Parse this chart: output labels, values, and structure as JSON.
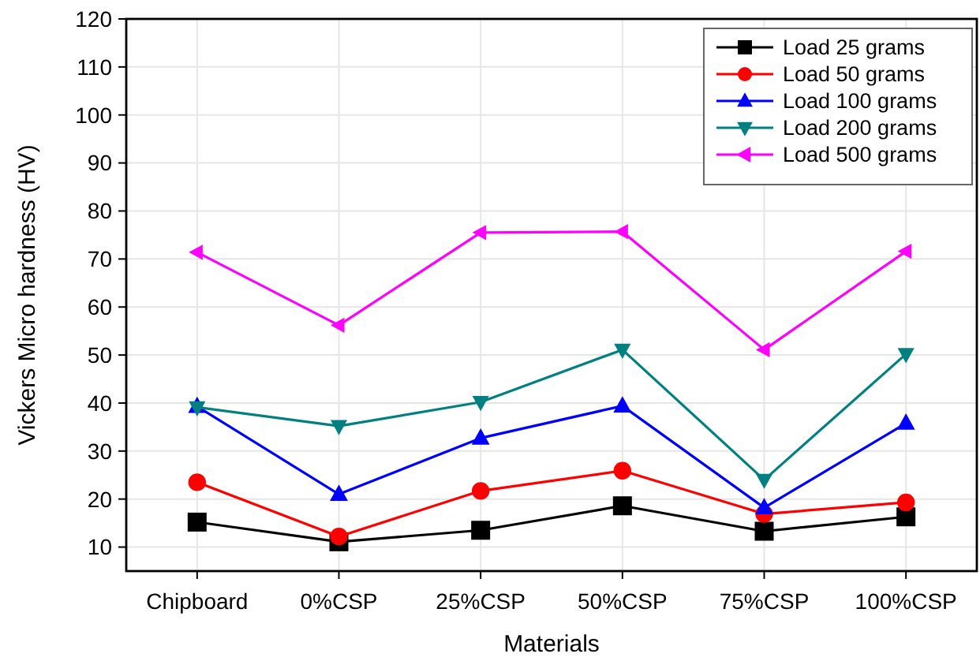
{
  "chart_data": {
    "type": "line",
    "xlabel": "Materials",
    "ylabel": "Vickers Micro hardness (HV)",
    "categories": [
      "Chipboard",
      "0%CSP",
      "25%CSP",
      "50%CSP",
      "75%CSP",
      "100%CSP"
    ],
    "series": [
      {
        "name": "Load 25 grams",
        "color": "#000000",
        "marker": "square",
        "values": [
          15.2,
          11.1,
          13.5,
          18.6,
          13.3,
          16.3
        ]
      },
      {
        "name": "Load 50 grams",
        "color": "#ff0000",
        "marker": "circle",
        "values": [
          23.5,
          12.2,
          21.7,
          25.9,
          16.9,
          19.3
        ]
      },
      {
        "name": "Load 100 grams",
        "color": "#0000ff",
        "marker": "triangle",
        "values": [
          39.3,
          21,
          32.7,
          39.4,
          18.2,
          35.8
        ]
      },
      {
        "name": "Load 200 grams",
        "color": "#008080",
        "marker": "triangle-down",
        "values": [
          39.1,
          35.2,
          40.2,
          51.1,
          24,
          50.2
        ]
      },
      {
        "name": "Load 500 grams",
        "color": "#ff00ff",
        "marker": "triangle-left",
        "values": [
          71.4,
          56.2,
          75.5,
          75.7,
          51.1,
          71.6
        ]
      }
    ],
    "ylim": [
      5,
      120
    ],
    "yticks": [
      10,
      20,
      30,
      40,
      50,
      60,
      70,
      80,
      90,
      100,
      110,
      120
    ],
    "grid": true,
    "legend": "top right",
    "line_style": "solid"
  }
}
